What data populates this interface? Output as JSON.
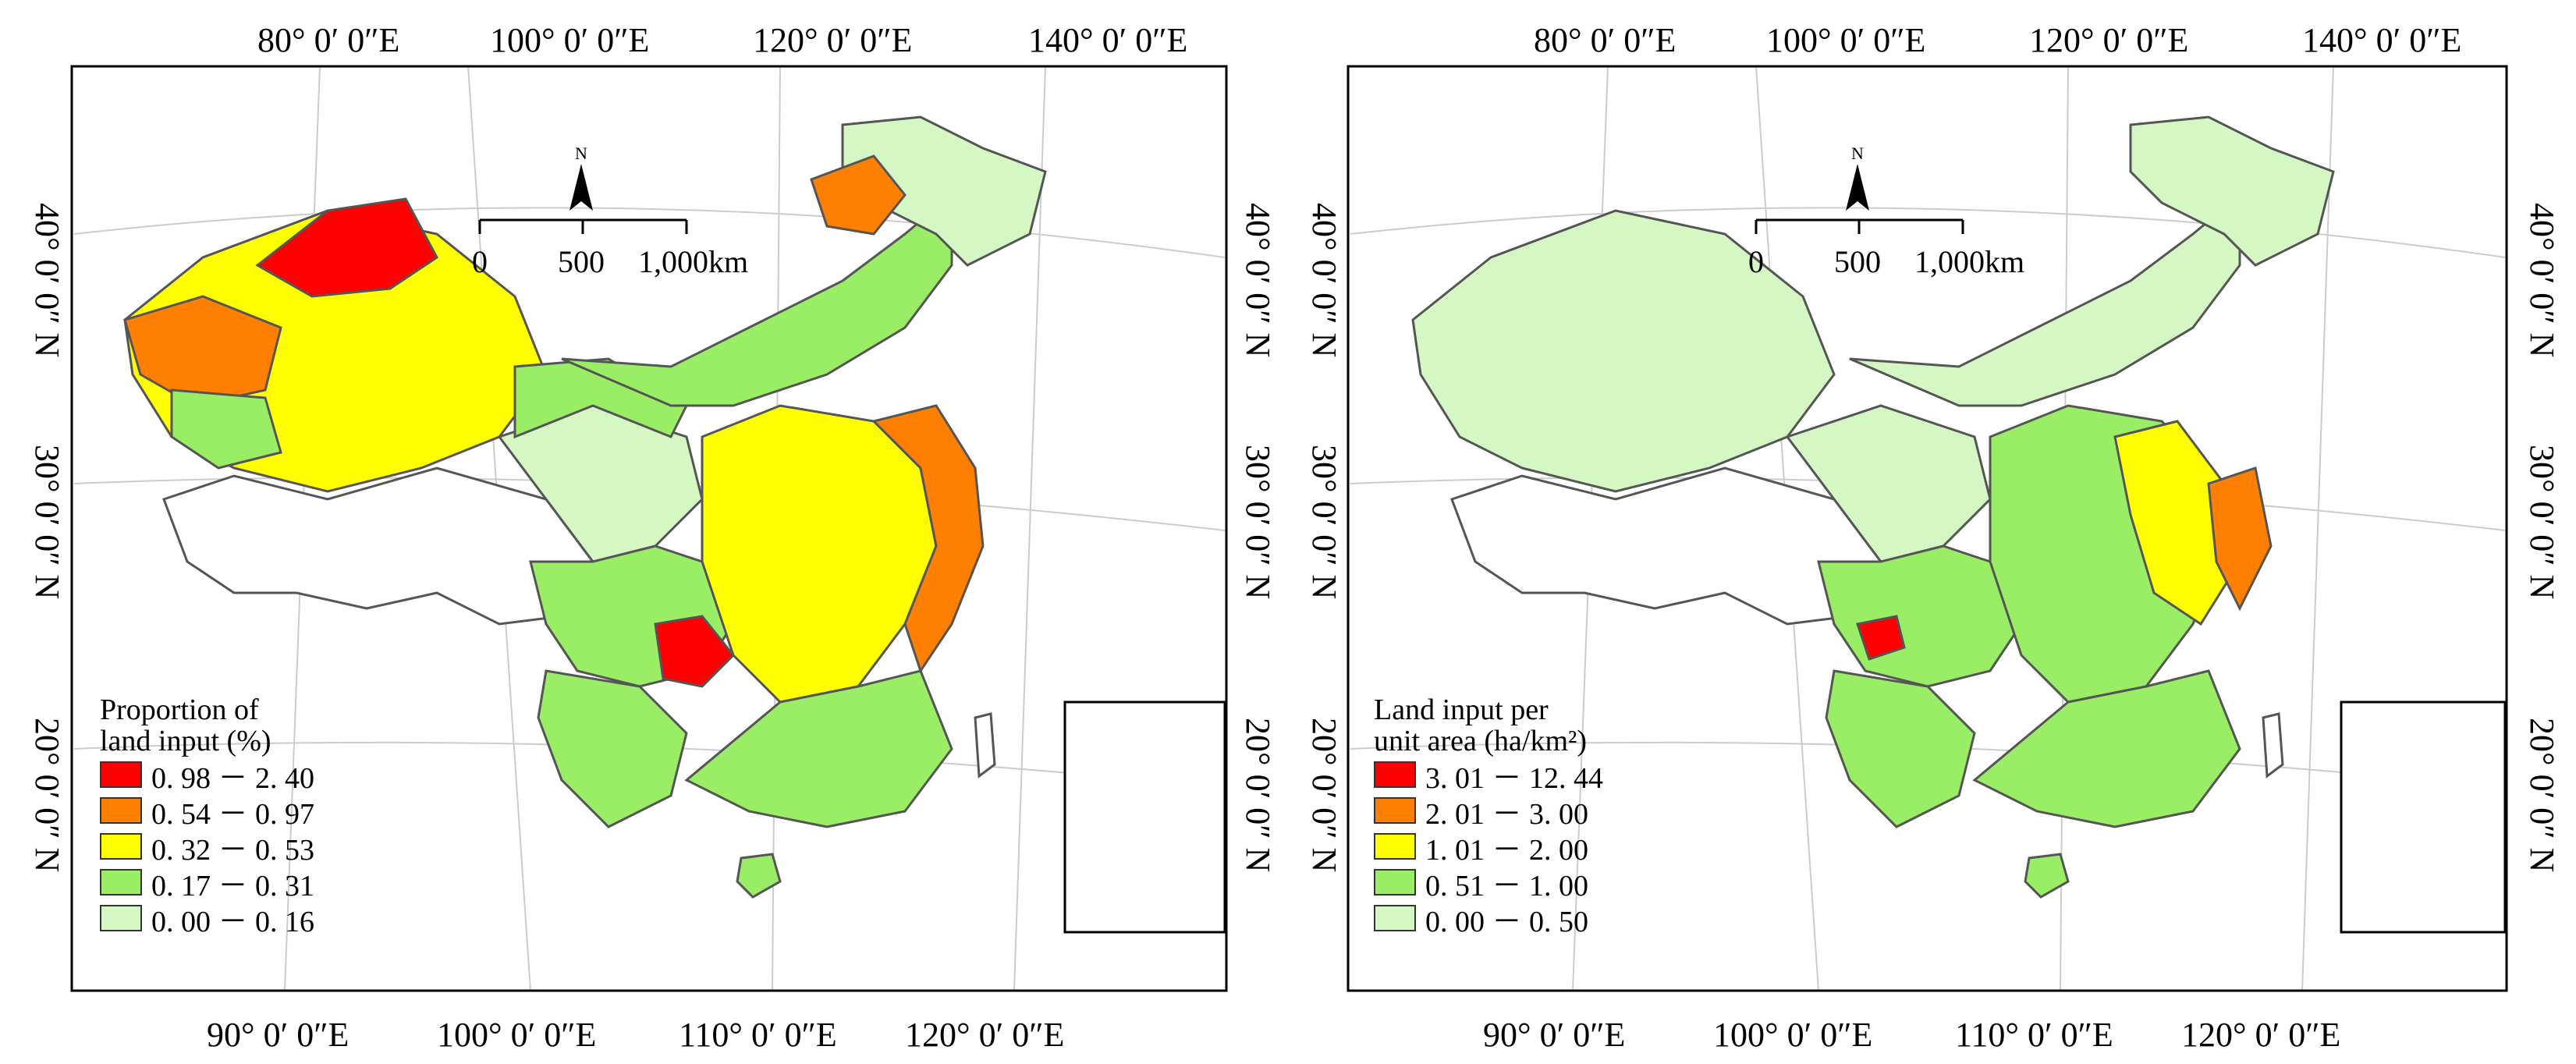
{
  "panels": [
    {
      "top_lon_labels": [
        "80° 0′ 0″E",
        "100° 0′ 0″E",
        "120° 0′ 0″E",
        "140° 0′ 0″E"
      ],
      "bottom_lon_labels": [
        "90° 0′ 0″E",
        "100° 0′ 0″E",
        "110° 0′ 0″E",
        "120° 0′ 0″E"
      ],
      "left_lat_labels": [
        "40° 0′ 0″ N",
        "30° 0′ 0″ N",
        "20° 0′ 0″ N"
      ],
      "right_lat_labels": [
        "40° 0′ 0″ N",
        "30° 0′ 0″ N",
        "20° 0′ 0″ N"
      ],
      "north_label": "N",
      "scale_labels": [
        "0",
        "500",
        "1,000km"
      ],
      "legend": {
        "title": "Proportion of\nland input (%)",
        "classes": [
          {
            "label": "0. 98 － 2. 40",
            "color": "#ff0000"
          },
          {
            "label": "0. 54 － 0. 97",
            "color": "#ff8000"
          },
          {
            "label": "0. 32 － 0. 53",
            "color": "#ffff00"
          },
          {
            "label": "0. 17 － 0. 31",
            "color": "#99ee66"
          },
          {
            "label": "0. 00 － 0. 16",
            "color": "#d4f7c4"
          }
        ]
      }
    },
    {
      "top_lon_labels": [
        "80° 0′ 0″E",
        "100° 0′ 0″E",
        "120° 0′ 0″E",
        "140° 0′ 0″E"
      ],
      "bottom_lon_labels": [
        "90° 0′ 0″E",
        "100° 0′ 0″E",
        "110° 0′ 0″E",
        "120° 0′ 0″E"
      ],
      "left_lat_labels": [
        "40° 0′ 0″ N",
        "30° 0′ 0″ N",
        "20° 0′ 0″ N"
      ],
      "right_lat_labels": [
        "40° 0′ 0″ N",
        "30° 0′ 0″ N",
        "20° 0′ 0″ N"
      ],
      "north_label": "N",
      "scale_labels": [
        "0",
        "500",
        "1,000km"
      ],
      "legend": {
        "title": "Land input per\nunit area (ha/km²)",
        "classes": [
          {
            "label": "3. 01 － 12. 44",
            "color": "#ff0000"
          },
          {
            "label": "2. 01 － 3. 00",
            "color": "#ff8000"
          },
          {
            "label": "1. 01 － 2. 00",
            "color": "#ffff00"
          },
          {
            "label": "0. 51 － 1. 00",
            "color": "#99ee66"
          },
          {
            "label": "0. 00 － 0. 50",
            "color": "#d4f7c4"
          }
        ]
      }
    }
  ],
  "palette": {
    "outline": "#555555",
    "province": "#444444",
    "grid": "#cccccc",
    "tibet": "#ffffff"
  }
}
